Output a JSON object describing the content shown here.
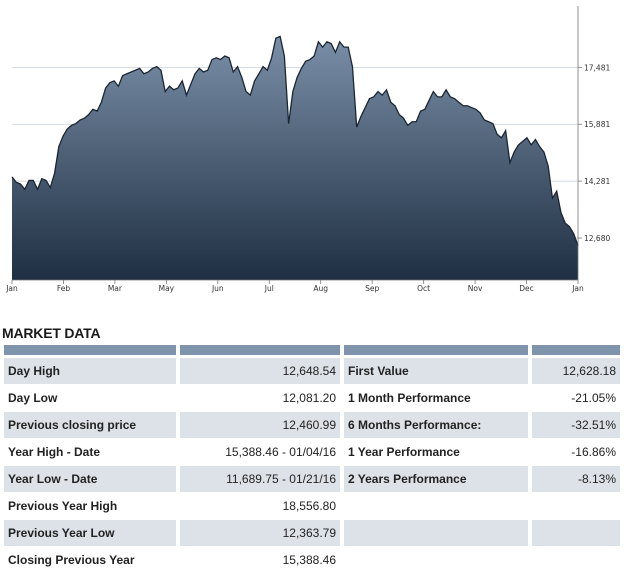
{
  "chart_data": {
    "type": "area",
    "x_tick_labels": [
      "Jan",
      "Feb",
      "Mar",
      "May",
      "Jun",
      "Jul",
      "Aug",
      "Sep",
      "Oct",
      "Nov",
      "Dec",
      "Jan"
    ],
    "y_tick_labels": [
      "17,481",
      "15,881",
      "14,281",
      "12,680"
    ],
    "y_ticks": [
      17481,
      15881,
      14281,
      12680
    ],
    "ylim": [
      11500,
      19150
    ],
    "title": "",
    "xlabel": "",
    "ylabel": "",
    "grid": "horizontal",
    "colors": {
      "fill_top": "#7a8fa8",
      "fill_bottom": "#1f2f42",
      "line": "#1a2633"
    },
    "series": [
      {
        "values": [
          14400,
          14250,
          14200,
          14050,
          14300,
          14300,
          14050,
          14350,
          14300,
          14100,
          14500,
          15250,
          15550,
          15750,
          15850,
          15900,
          16000,
          16050,
          16150,
          16300,
          16250,
          16500,
          16900,
          17050,
          17100,
          16950,
          17250,
          17300,
          17350,
          17400,
          17450,
          17300,
          17350,
          17450,
          17500,
          17400,
          16800,
          16950,
          16850,
          16900,
          17100,
          16700,
          17000,
          17300,
          17450,
          17350,
          17400,
          17700,
          17750,
          17700,
          17800,
          17750,
          17350,
          17500,
          17200,
          16800,
          16700,
          17100,
          17300,
          17500,
          17400,
          17750,
          18300,
          18350,
          17800,
          15900,
          16800,
          17200,
          17450,
          17650,
          17700,
          17800,
          18200,
          18050,
          18200,
          18150,
          17900,
          18200,
          18050,
          18050,
          17500,
          15800,
          16100,
          16350,
          16600,
          16650,
          16800,
          16700,
          16850,
          16500,
          16400,
          16150,
          16050,
          15850,
          15950,
          15950,
          16250,
          16300,
          16550,
          16800,
          16650,
          16650,
          16850,
          16650,
          16600,
          16500,
          16400,
          16400,
          16350,
          16300,
          16200,
          16000,
          15950,
          15900,
          15600,
          15500,
          15700,
          14800,
          15100,
          15300,
          15400,
          15500,
          15300,
          15450,
          15250,
          15100,
          14700,
          13800,
          14000,
          13400,
          13100,
          13000,
          12800,
          12460
        ]
      }
    ]
  },
  "market": {
    "title": "MARKET DATA",
    "rows": [
      {
        "label_left": "Day High",
        "value_left": "12,648.54",
        "label_right": "First Value",
        "value_right": "12,628.18"
      },
      {
        "label_left": "Day Low",
        "value_left": "12,081.20",
        "label_right": "1 Month Performance",
        "value_right": "-21.05%"
      },
      {
        "label_left": "Previous closing price",
        "value_left": "12,460.99",
        "label_right": "6 Months Performance:",
        "value_right": "-32.51%"
      },
      {
        "label_left": "Year High - Date",
        "value_left": "15,388.46 - 01/04/16",
        "label_right": "1 Year Performance",
        "value_right": "-16.86%"
      },
      {
        "label_left": "Year Low - Date",
        "value_left": "11,689.75 - 01/21/16",
        "label_right": "2 Years Performance",
        "value_right": "-8.13%"
      },
      {
        "label_left": "Previous Year High",
        "value_left": "18,556.80",
        "label_right": "",
        "value_right": ""
      },
      {
        "label_left": "Previous Year Low",
        "value_left": "12,363.79",
        "label_right": "",
        "value_right": ""
      },
      {
        "label_left": "Closing Previous Year",
        "value_left": "15,388.46",
        "label_right": "",
        "value_right": ""
      }
    ]
  }
}
